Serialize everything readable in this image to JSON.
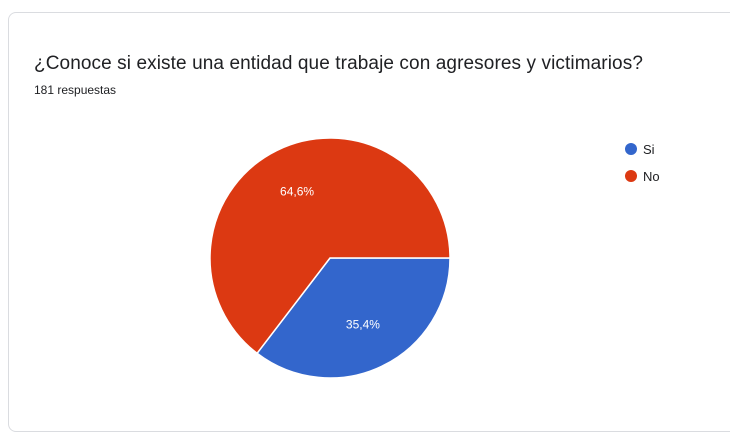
{
  "header": {
    "title": "¿Conoce si existe una entidad que trabaje con agresores y victimarios?",
    "subtitle": "181 respuestas"
  },
  "chart_data": {
    "type": "pie",
    "title": "¿Conoce si existe una entidad que trabaje con agresores y victimarios?",
    "total_label": "181 respuestas",
    "legend_position": "right",
    "slices": [
      {
        "label": "Si",
        "value": 35.4,
        "display": "35,4%",
        "color": "#3366cc"
      },
      {
        "label": "No",
        "value": 64.6,
        "display": "64,6%",
        "color": "#dc3912"
      }
    ]
  }
}
